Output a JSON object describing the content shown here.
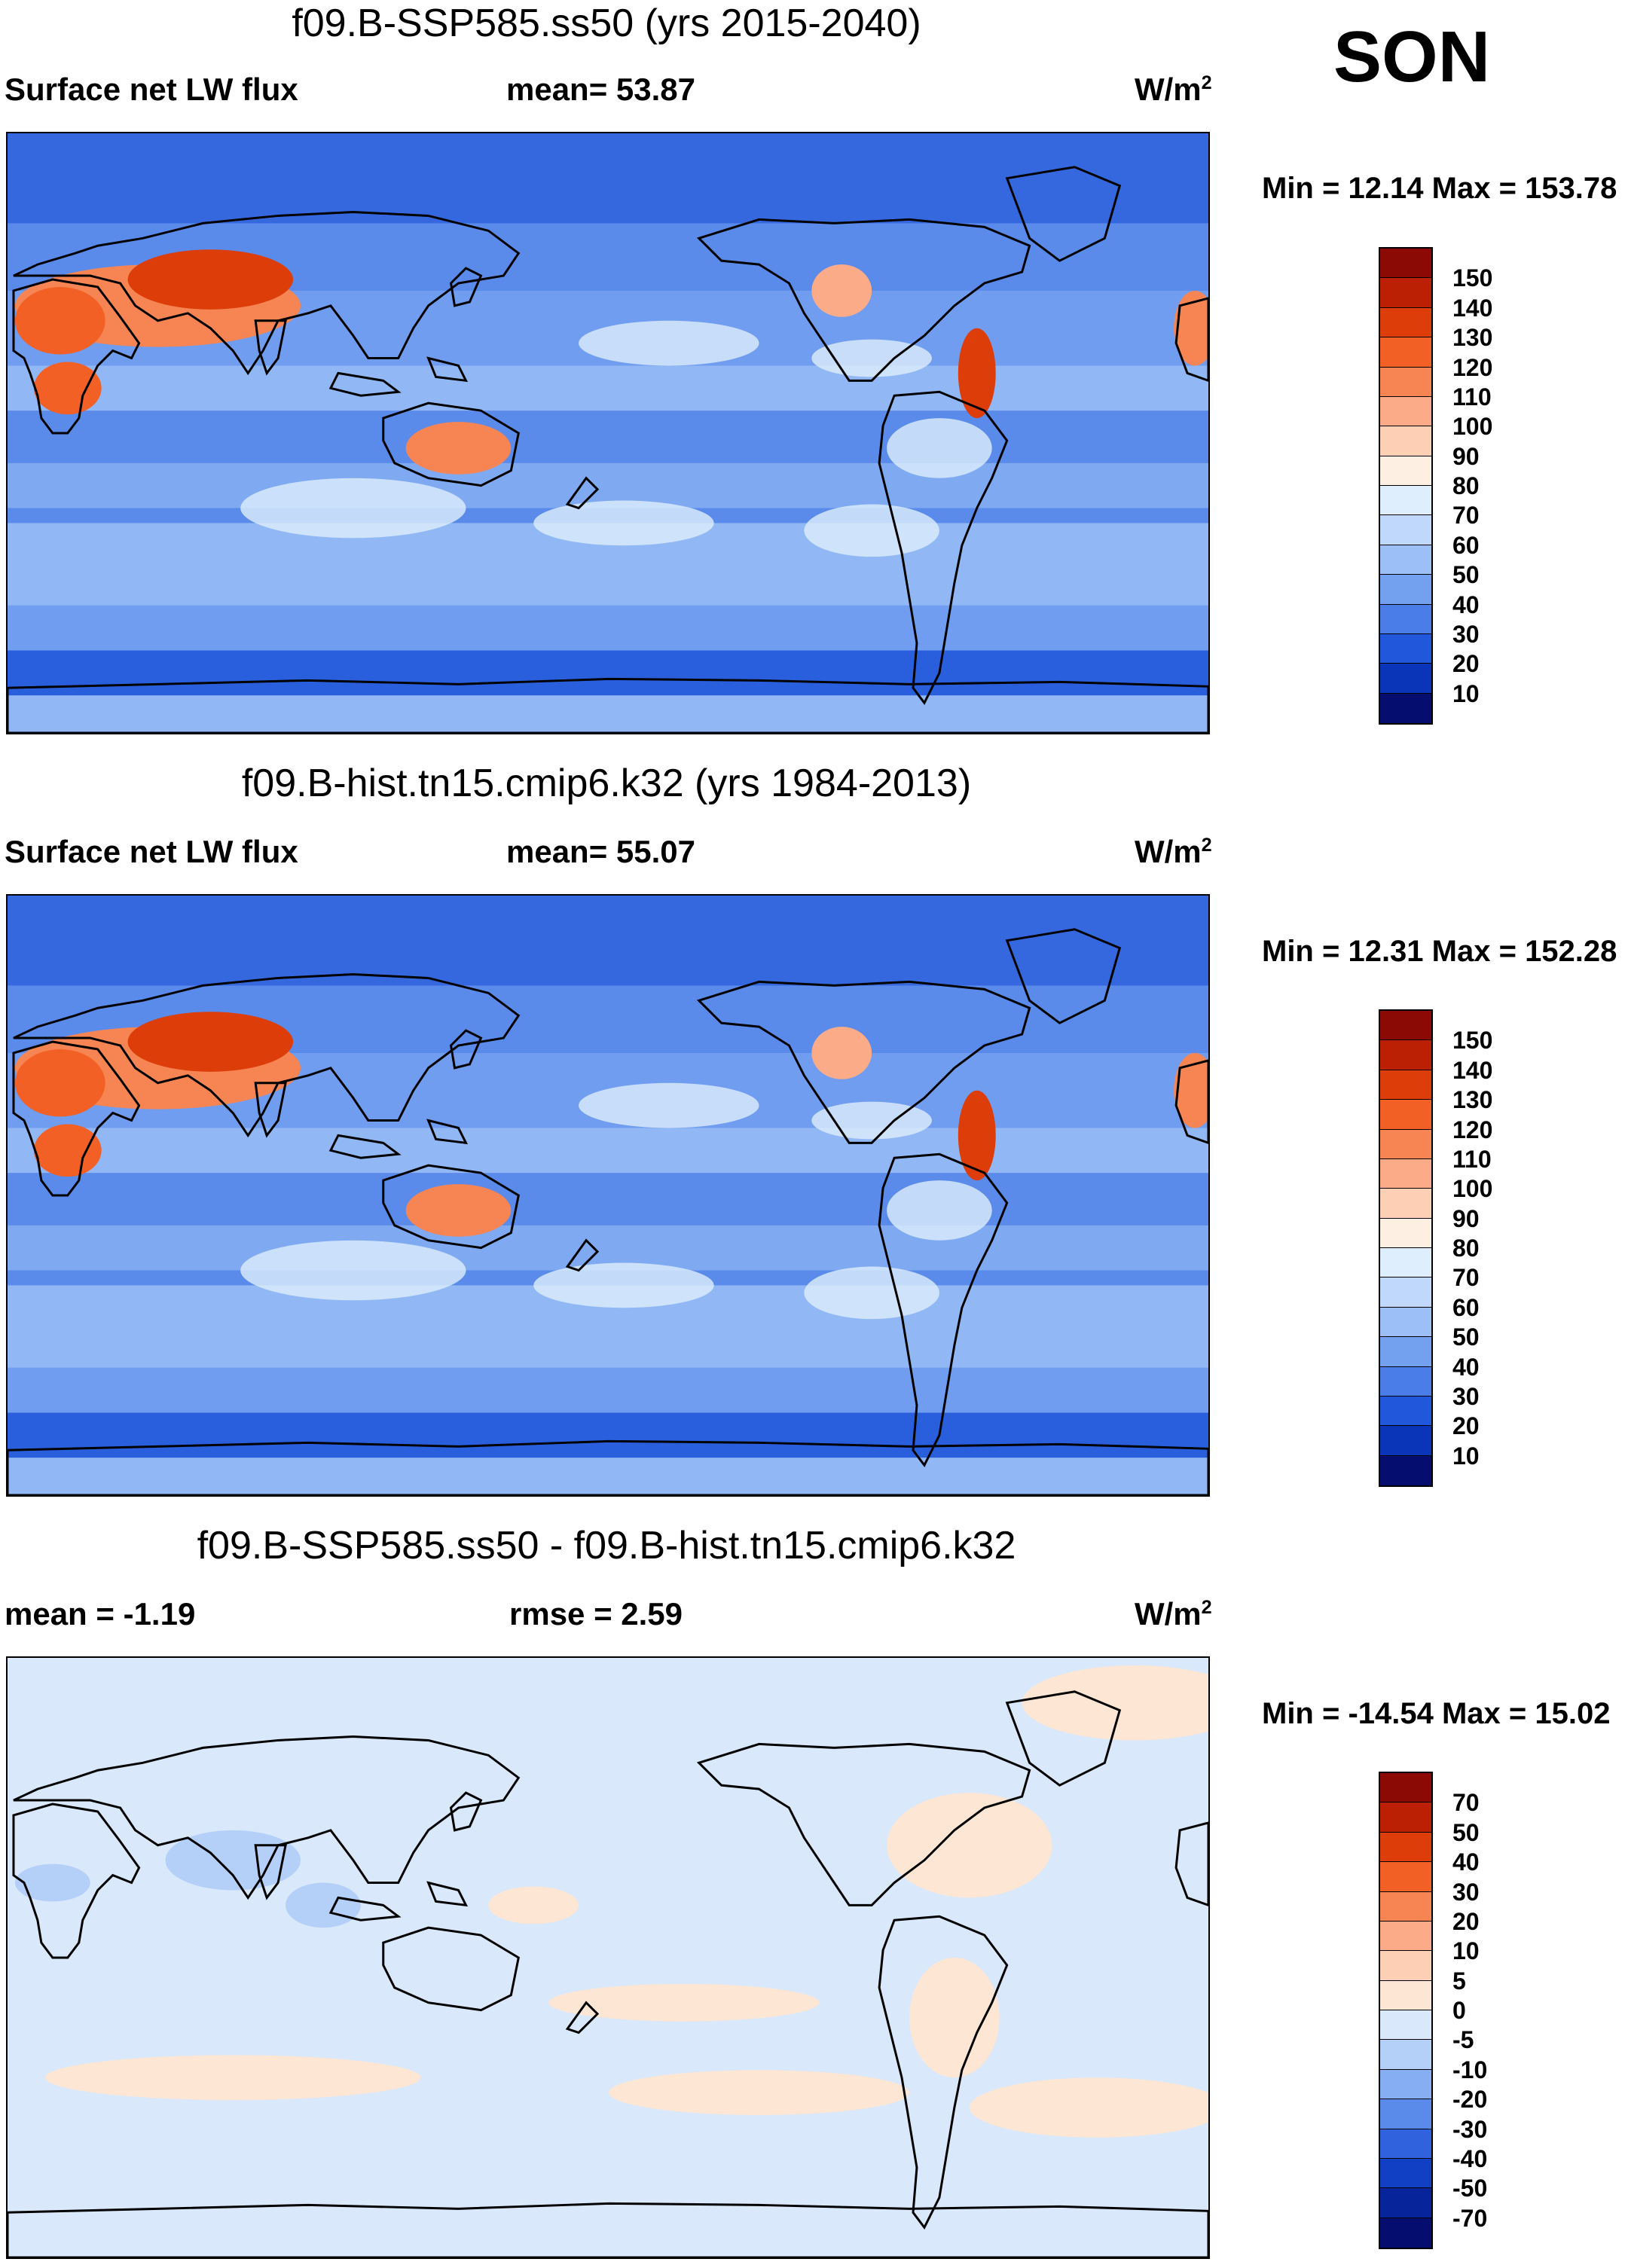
{
  "season": "SON",
  "units": "W/m",
  "units_exp": "2",
  "panels": [
    {
      "title": "f09.B-SSP585.ss50 (yrs 2015-2040)",
      "left_label": "Surface net LW flux",
      "center_label": "mean=  53.87",
      "minmax": "Min =  12.14 Max = 153.78",
      "colorbar_labels": [
        "150",
        "140",
        "130",
        "120",
        "110",
        "100",
        "90",
        "80",
        "70",
        "60",
        "50",
        "40",
        "30",
        "20",
        "10"
      ],
      "colors": [
        "#8b0a06",
        "#bb2004",
        "#dd3d08",
        "#f26025",
        "#f68553",
        "#fbab87",
        "#fdd0b6",
        "#fdf0e2",
        "#dfeefd",
        "#bfd8fb",
        "#9bbff6",
        "#74a0f0",
        "#4a7de8",
        "#2157db",
        "#0a35b8",
        "#050e6e"
      ]
    },
    {
      "title": "f09.B-hist.tn15.cmip6.k32 (yrs 1984-2013)",
      "left_label": "Surface net LW flux",
      "center_label": "mean=  55.07",
      "minmax": "Min =  12.31 Max = 152.28",
      "colorbar_labels": [
        "150",
        "140",
        "130",
        "120",
        "110",
        "100",
        "90",
        "80",
        "70",
        "60",
        "50",
        "40",
        "30",
        "20",
        "10"
      ],
      "colors": [
        "#8b0a06",
        "#bb2004",
        "#dd3d08",
        "#f26025",
        "#f68553",
        "#fbab87",
        "#fdd0b6",
        "#fdf0e2",
        "#dfeefd",
        "#bfd8fb",
        "#9bbff6",
        "#74a0f0",
        "#4a7de8",
        "#2157db",
        "#0a35b8",
        "#050e6e"
      ]
    },
    {
      "title": "f09.B-SSP585.ss50 - f09.B-hist.tn15.cmip6.k32",
      "left_label": "mean =  -1.19",
      "center_label": "rmse =    2.59",
      "minmax": "Min = -14.54 Max =  15.02",
      "colorbar_labels": [
        "70",
        "50",
        "40",
        "30",
        "20",
        "10",
        "5",
        "0",
        "-5",
        "-10",
        "-20",
        "-30",
        "-40",
        "-50",
        "-70"
      ],
      "colors": [
        "#8b0a06",
        "#bb2004",
        "#dd3d08",
        "#f26025",
        "#f68553",
        "#fbab87",
        "#fdd0b6",
        "#fde6d3",
        "#d9e8fb",
        "#b4cff8",
        "#86aef2",
        "#5a8aea",
        "#2f62dc",
        "#1140c4",
        "#07249a",
        "#050e6e"
      ]
    }
  ]
}
